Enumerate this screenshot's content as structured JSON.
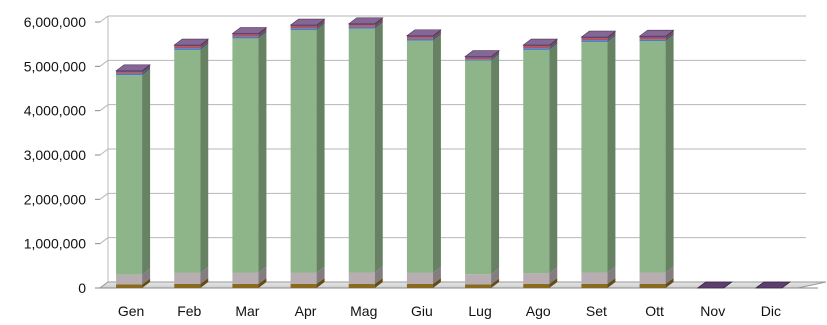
{
  "chart_data": {
    "type": "bar",
    "style": "stacked-3d",
    "categories": [
      "Gen",
      "Feb",
      "Mar",
      "Apr",
      "Mag",
      "Giu",
      "Lug",
      "Ago",
      "Set",
      "Ott",
      "Nov",
      "Dic"
    ],
    "series": [
      {
        "color": "#8a6a1e",
        "values": [
          80000,
          90000,
          90000,
          90000,
          90000,
          90000,
          80000,
          90000,
          90000,
          90000,
          0,
          0
        ]
      },
      {
        "color": "#b8aeb2",
        "values": [
          220000,
          250000,
          250000,
          250000,
          260000,
          250000,
          230000,
          240000,
          260000,
          260000,
          0,
          0
        ]
      },
      {
        "color": "#8eb48a",
        "values": [
          4500000,
          5030000,
          5290000,
          5480000,
          5500000,
          5240000,
          4820000,
          5040000,
          5200000,
          5220000,
          0,
          0
        ]
      },
      {
        "color": "#4a7bc4",
        "values": [
          40000,
          40000,
          40000,
          40000,
          40000,
          40000,
          30000,
          40000,
          40000,
          40000,
          0,
          0
        ]
      },
      {
        "color": "#c0504d",
        "values": [
          30000,
          40000,
          40000,
          40000,
          40000,
          40000,
          30000,
          40000,
          40000,
          40000,
          0,
          0
        ]
      },
      {
        "color": "#6e4c82",
        "values": [
          30000,
          30000,
          30000,
          30000,
          30000,
          30000,
          30000,
          30000,
          30000,
          30000,
          0,
          0
        ]
      }
    ],
    "title": "",
    "xlabel": "",
    "ylabel": "",
    "ylim": [
      0,
      6000000
    ],
    "yticks": [
      0,
      1000000,
      2000000,
      3000000,
      4000000,
      5000000,
      6000000
    ],
    "ytick_labels": [
      "0",
      "1,000,000",
      "2,000,000",
      "3,000,000",
      "4,000,000",
      "5,000,000",
      "6,000,000"
    ],
    "grid": true,
    "legend": "none"
  }
}
